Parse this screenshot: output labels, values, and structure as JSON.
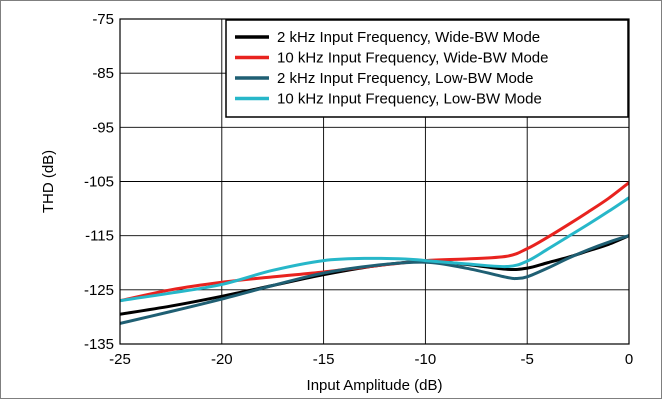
{
  "chart_data": {
    "type": "line",
    "title": "",
    "xlabel": "Input Amplitude (dB)",
    "ylabel": "THD (dB)",
    "xlim": [
      -25,
      0
    ],
    "ylim": [
      -135,
      -75
    ],
    "xticks": [
      "-25",
      "-20",
      "-15",
      "-10",
      "-5",
      "0"
    ],
    "yticks": [
      "-75",
      "-85",
      "-95",
      "-105",
      "-115",
      "-125",
      "-135"
    ],
    "grid": true,
    "legend_position": "top-right",
    "series": [
      {
        "name": "2 kHz Input Frequency, Wide-BW Mode",
        "color": "#000000",
        "x": [
          -25,
          -22.5,
          -20,
          -17.5,
          -15,
          -12.5,
          -10,
          -8,
          -6,
          -5,
          -4,
          -3,
          -2,
          -1,
          0
        ],
        "y": [
          -129.5,
          -128,
          -126.2,
          -124.2,
          -122.2,
          -120.6,
          -119.7,
          -120.3,
          -121.2,
          -121,
          -120,
          -119,
          -117.8,
          -116.6,
          -115
        ]
      },
      {
        "name": "10 kHz Input Frequency, Wide-BW Mode",
        "color": "#e8231f",
        "x": [
          -25,
          -22.5,
          -20,
          -17.5,
          -15,
          -12.5,
          -10,
          -8,
          -6,
          -5,
          -4,
          -3,
          -2,
          -1,
          0
        ],
        "y": [
          -127,
          -125,
          -123.6,
          -122.6,
          -121.7,
          -120.6,
          -119.6,
          -119.3,
          -118.8,
          -117.4,
          -115.3,
          -113,
          -110.6,
          -108.1,
          -105.2
        ]
      },
      {
        "name": "2 kHz Input Frequency, Low-BW Mode",
        "color": "#1f5f73",
        "x": [
          -25,
          -22.5,
          -20,
          -17.5,
          -15,
          -12.5,
          -10,
          -8,
          -6,
          -5.5,
          -5,
          -4,
          -3,
          -2,
          -1,
          0
        ],
        "y": [
          -131.2,
          -129,
          -126.7,
          -124.2,
          -121.9,
          -120.5,
          -119.9,
          -121,
          -122.7,
          -122.9,
          -122.6,
          -121,
          -119.2,
          -117.6,
          -116.2,
          -115
        ]
      },
      {
        "name": "10 kHz Input Frequency, Low-BW Mode",
        "color": "#27b7c9",
        "x": [
          -25,
          -22.5,
          -20,
          -17.5,
          -15,
          -13,
          -11,
          -10,
          -8,
          -6,
          -5,
          -4,
          -3,
          -2,
          -1,
          0
        ],
        "y": [
          -127,
          -125.6,
          -124,
          -121.4,
          -119.6,
          -119.2,
          -119.3,
          -119.6,
          -120.2,
          -120.7,
          -119.7,
          -117.5,
          -115.2,
          -112.9,
          -110.5,
          -108
        ]
      }
    ]
  }
}
